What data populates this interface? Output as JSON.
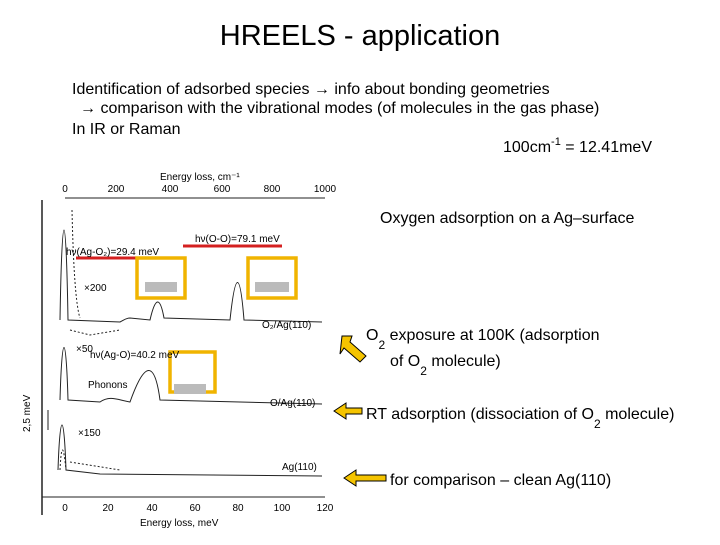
{
  "title": "HREELS - application",
  "body": {
    "lines": [
      "Identification of adsorbed species → info about bonding geometries",
      "→ comparison with the vibrational modes (of molecules in the gas phase)",
      "In IR or Raman"
    ],
    "conversion": {
      "base": "100cm",
      "sup": "-1",
      "rest": " = 12.41meV"
    }
  },
  "figure": {
    "top_axis_label": "Energy loss, cm⁻¹",
    "top_ticks": [
      "0",
      "200",
      "400",
      "600",
      "800",
      "1000"
    ],
    "bottom_axis_label": "Energy loss, meV",
    "bottom_ticks": [
      "0",
      "20",
      "40",
      "60",
      "80",
      "100",
      "120"
    ],
    "scale_label": "2,5 meV",
    "annotations": [
      "hν(Ag-O₂)=29.4 meV",
      "hν(O-O)=79.1 meV",
      "×200",
      "×50",
      "hν(Ag-O)=40.2 meV",
      "Phonons",
      "×150",
      "O₂/Ag(110)",
      "O/Ag(110)",
      "Ag(110)"
    ]
  },
  "callouts": {
    "heading": "Oxygen adsorption on a Ag–surface",
    "o2": [
      "O",
      "2",
      " exposure at 100K (adsorption",
      "of O",
      "2",
      " molecule)"
    ],
    "rt": [
      "RT adsorption (dissociation of O",
      "2",
      " molecule)"
    ],
    "clean": "for comparison – clean Ag(110)"
  }
}
